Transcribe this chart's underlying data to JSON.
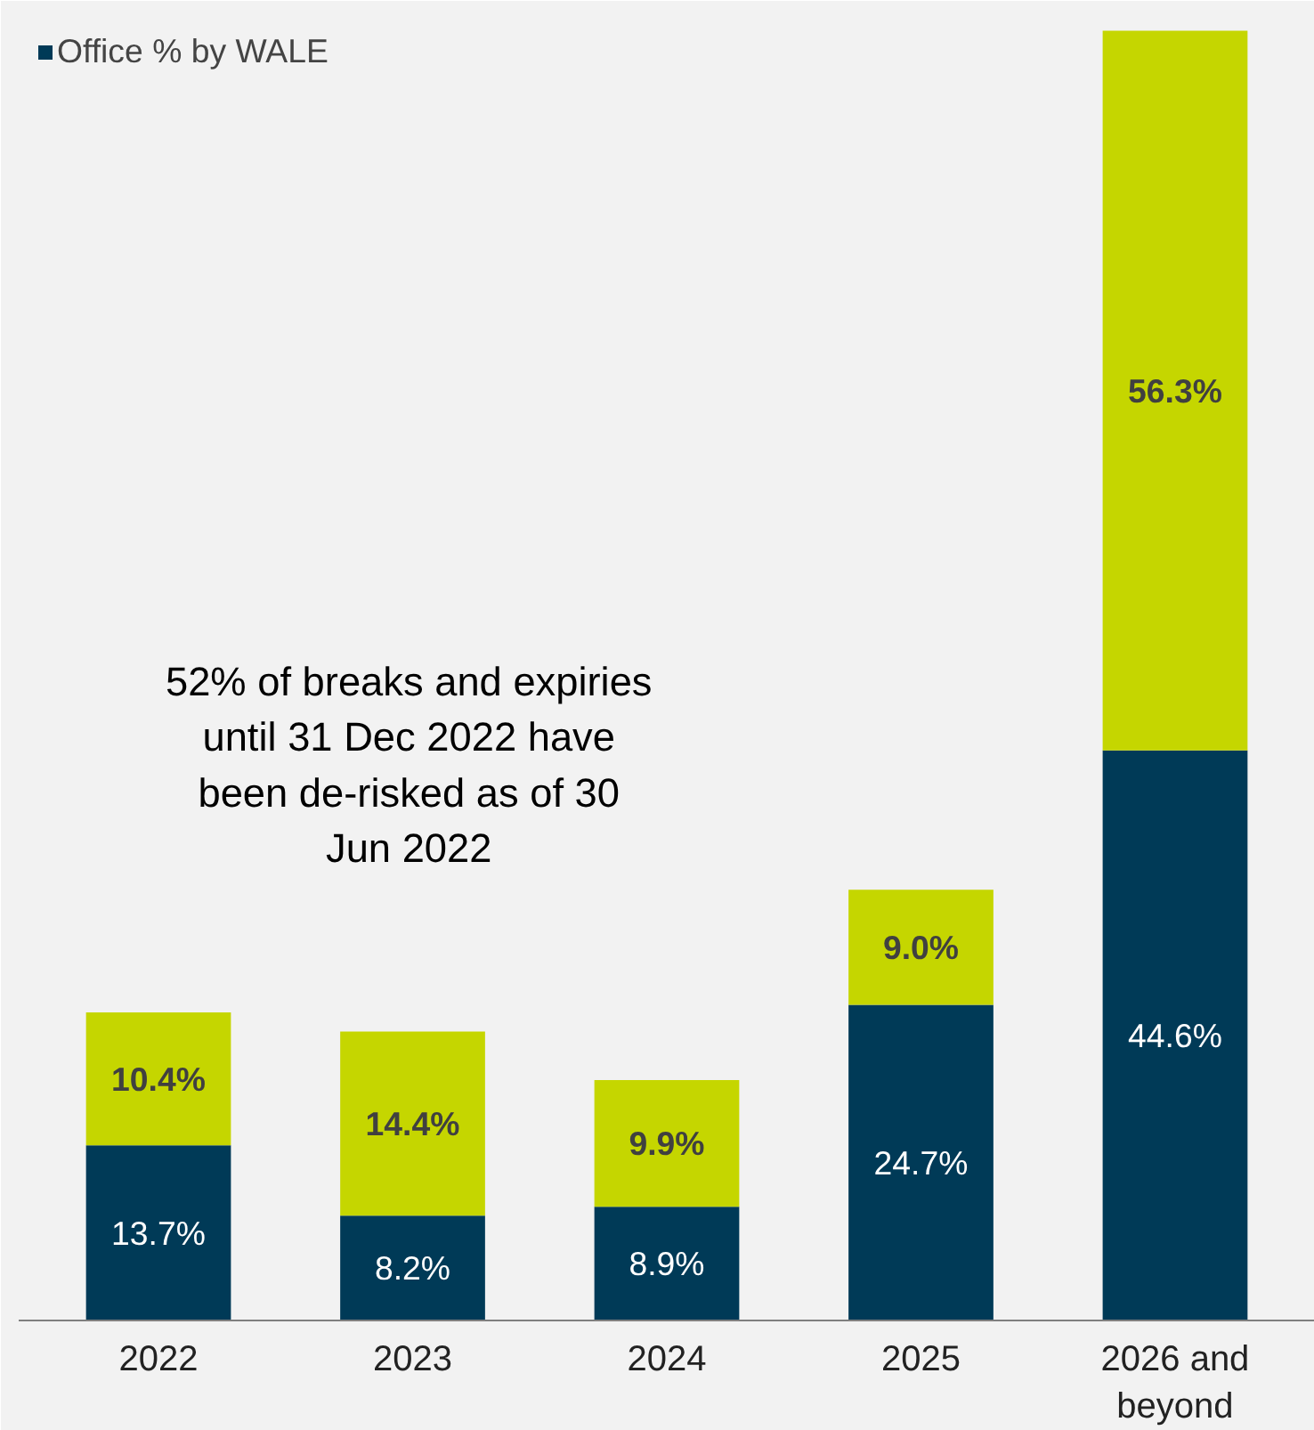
{
  "chart_data": {
    "type": "bar",
    "stacked": true,
    "legend": "top left",
    "grid": false,
    "categories": [
      "2022",
      "2023",
      "2024",
      "2025",
      "2026 and\nbeyond"
    ],
    "series": [
      {
        "name": "Office % by WALE",
        "color": "#003a57",
        "values": [
          13.7,
          8.2,
          8.9,
          24.7,
          44.6
        ],
        "value_labels": [
          "13.7%",
          "8.2%",
          "8.9%",
          "24.7%",
          "44.6%"
        ]
      },
      {
        "color": "#c5d600",
        "values": [
          10.4,
          14.4,
          9.9,
          9.0,
          56.3
        ],
        "value_labels": [
          "10.4%",
          "14.4%",
          "9.9%",
          "9.0%",
          "56.3%"
        ]
      }
    ],
    "annotations": [
      "52% of breaks and expiries\nuntil 31 Dec 2022 have\nbeen de-risked as of 30\nJun 2022"
    ]
  }
}
